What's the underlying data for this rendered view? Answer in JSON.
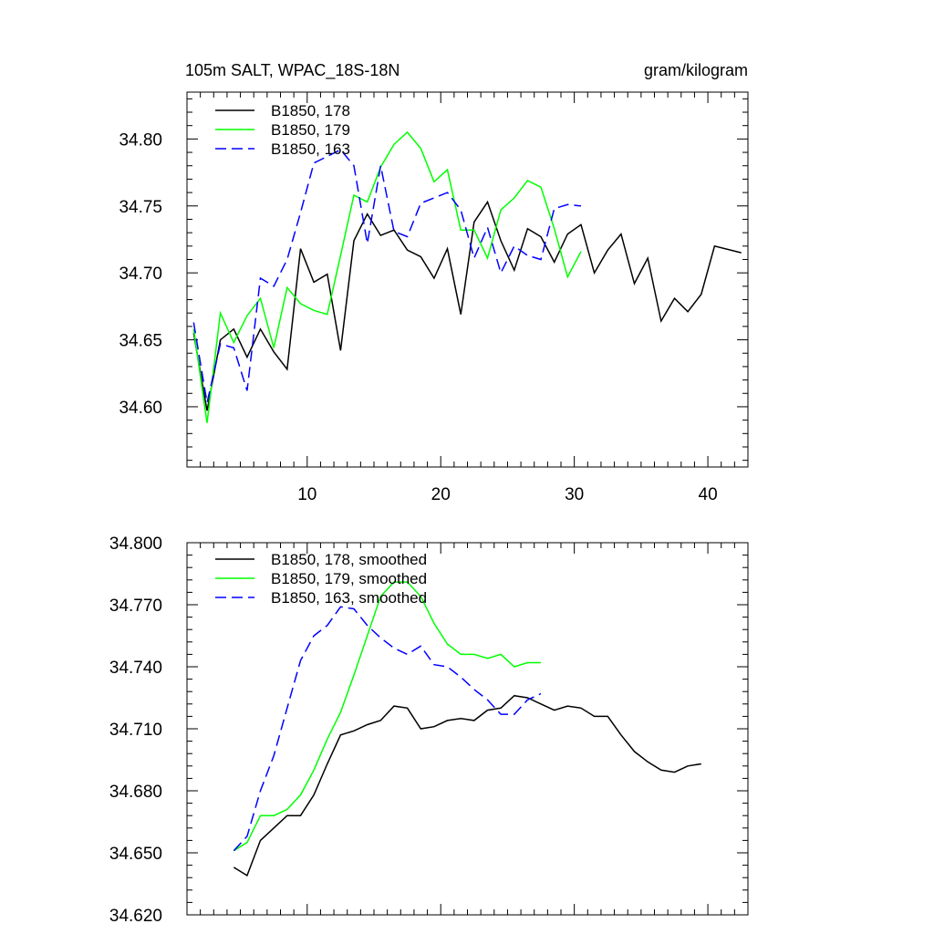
{
  "titles": {
    "left": "105m SALT, WPAC_18S-18N",
    "right": "gram/kilogram"
  },
  "chart_data": [
    {
      "type": "line",
      "title": "105m SALT, WPAC_18S-18N",
      "units": "gram/kilogram",
      "xlim": [
        1,
        43
      ],
      "ylim": [
        34.555,
        34.835
      ],
      "xticks": [
        10,
        20,
        30,
        40
      ],
      "xticklabels": [
        "10",
        "20",
        "30",
        "40"
      ],
      "yticks": [
        34.6,
        34.65,
        34.7,
        34.75,
        34.8
      ],
      "yticklabels": [
        "34.60",
        "34.65",
        "34.70",
        "34.75",
        "34.80"
      ],
      "legend_position": "top-left",
      "series": [
        {
          "name": "B1850, 178",
          "color": "#000000",
          "dash": "solid",
          "x": [
            1.5,
            2.5,
            3.5,
            4.5,
            5.5,
            6.5,
            7.5,
            8.5,
            9.5,
            10.5,
            11.5,
            12.5,
            13.5,
            14.5,
            15.5,
            16.5,
            17.5,
            18.5,
            19.5,
            20.5,
            21.5,
            22.5,
            23.5,
            24.5,
            25.5,
            26.5,
            27.5,
            28.5,
            29.5,
            30.5,
            31.5,
            32.5,
            33.5,
            34.5,
            35.5,
            36.5,
            37.5,
            38.5,
            39.5,
            40.5,
            42.5
          ],
          "values": [
            34.655,
            34.597,
            34.65,
            34.658,
            34.637,
            34.658,
            34.641,
            34.628,
            34.718,
            34.693,
            34.699,
            34.642,
            34.724,
            34.744,
            34.728,
            34.732,
            34.717,
            34.712,
            34.696,
            34.718,
            34.669,
            34.738,
            34.753,
            34.724,
            34.702,
            34.733,
            34.727,
            34.708,
            34.729,
            34.736,
            34.7,
            34.717,
            34.729,
            34.692,
            34.711,
            34.664,
            34.681,
            34.671,
            34.684,
            34.72,
            34.715
          ]
        },
        {
          "name": "B1850, 179",
          "color": "#00ff00",
          "dash": "solid",
          "x": [
            1.5,
            2.5,
            3.5,
            4.5,
            5.5,
            6.5,
            7.5,
            8.5,
            9.5,
            10.5,
            11.5,
            12.5,
            13.5,
            14.5,
            15.5,
            16.5,
            17.5,
            18.5,
            19.5,
            20.5,
            21.5,
            22.5,
            23.5,
            24.5,
            25.5,
            26.5,
            27.5,
            28.5,
            29.5,
            30.5
          ],
          "values": [
            34.658,
            34.588,
            34.67,
            34.648,
            34.668,
            34.681,
            34.644,
            34.689,
            34.677,
            34.672,
            34.669,
            34.713,
            34.758,
            34.753,
            34.779,
            34.796,
            34.805,
            34.793,
            34.768,
            34.777,
            34.732,
            34.732,
            34.711,
            34.747,
            34.756,
            34.769,
            34.764,
            34.733,
            34.697,
            34.716
          ]
        },
        {
          "name": "B1850, 163",
          "color": "#0000ff",
          "dash": "dashed",
          "x": [
            1.5,
            2.5,
            3.5,
            4.5,
            5.5,
            6.5,
            7.5,
            8.5,
            9.5,
            10.5,
            11.5,
            12.5,
            13.5,
            14.5,
            15.5,
            16.5,
            17.5,
            18.5,
            19.5,
            20.5,
            21.5,
            22.5,
            23.5,
            24.5,
            25.5,
            26.5,
            27.5,
            28.5,
            29.5,
            30.5
          ],
          "values": [
            34.663,
            34.603,
            34.647,
            34.644,
            34.612,
            34.696,
            34.69,
            34.71,
            34.745,
            34.782,
            34.787,
            34.792,
            34.78,
            34.722,
            34.78,
            34.731,
            34.727,
            34.752,
            34.756,
            34.76,
            34.747,
            34.711,
            34.734,
            34.7,
            34.72,
            34.713,
            34.71,
            34.748,
            34.751,
            34.75
          ]
        }
      ]
    },
    {
      "type": "line",
      "xlim": [
        1,
        43
      ],
      "ylim": [
        34.62,
        34.8
      ],
      "xticks": [
        10,
        20,
        30,
        40
      ],
      "yticks": [
        34.62,
        34.65,
        34.68,
        34.71,
        34.74,
        34.77,
        34.8
      ],
      "yticklabels": [
        "34.620",
        "34.650",
        "34.680",
        "34.710",
        "34.740",
        "34.770",
        "34.800"
      ],
      "legend_position": "top-left",
      "series": [
        {
          "name": "B1850, 178, smoothed",
          "color": "#000000",
          "dash": "solid",
          "x": [
            4.5,
            5.5,
            6.5,
            7.5,
            8.5,
            9.5,
            10.5,
            11.5,
            12.5,
            13.5,
            14.5,
            15.5,
            16.5,
            17.5,
            18.5,
            19.5,
            20.5,
            21.5,
            22.5,
            23.5,
            24.5,
            25.5,
            26.5,
            27.5,
            28.5,
            29.5,
            30.5,
            31.5,
            32.5,
            33.5,
            34.5,
            35.5,
            36.5,
            37.5,
            38.5,
            39.5
          ],
          "values": [
            34.643,
            34.639,
            34.656,
            34.662,
            34.668,
            34.668,
            34.678,
            34.693,
            34.707,
            34.709,
            34.712,
            34.714,
            34.721,
            34.72,
            34.71,
            34.711,
            34.714,
            34.715,
            34.714,
            34.719,
            34.72,
            34.726,
            34.725,
            34.722,
            34.719,
            34.721,
            34.72,
            34.716,
            34.716,
            34.707,
            34.699,
            34.694,
            34.69,
            34.689,
            34.692,
            34.693
          ]
        },
        {
          "name": "B1850, 179, smoothed",
          "color": "#00ff00",
          "dash": "solid",
          "x": [
            4.5,
            5.5,
            6.5,
            7.5,
            8.5,
            9.5,
            10.5,
            11.5,
            12.5,
            13.5,
            14.5,
            15.5,
            16.5,
            17.5,
            18.5,
            19.5,
            20.5,
            21.5,
            22.5,
            23.5,
            24.5,
            25.5,
            26.5,
            27.5
          ],
          "values": [
            34.651,
            34.655,
            34.668,
            34.668,
            34.671,
            34.678,
            34.69,
            34.705,
            34.718,
            34.736,
            34.755,
            34.774,
            34.781,
            34.781,
            34.774,
            34.761,
            34.751,
            34.746,
            34.746,
            34.744,
            34.746,
            34.74,
            34.742,
            34.742
          ]
        },
        {
          "name": "B1850, 163, smoothed",
          "color": "#0000ff",
          "dash": "dashed",
          "x": [
            4.5,
            5.5,
            6.5,
            7.5,
            8.5,
            9.5,
            10.5,
            11.5,
            12.5,
            13.5,
            14.5,
            15.5,
            16.5,
            17.5,
            18.5,
            19.5,
            20.5,
            21.5,
            22.5,
            23.5,
            24.5,
            25.5,
            26.5,
            27.5
          ],
          "values": [
            34.651,
            34.658,
            34.68,
            34.697,
            34.72,
            34.743,
            34.755,
            34.76,
            34.769,
            34.768,
            34.76,
            34.754,
            34.749,
            34.746,
            34.75,
            34.741,
            34.74,
            34.735,
            34.729,
            34.724,
            34.717,
            34.717,
            34.724,
            34.727
          ]
        }
      ]
    }
  ]
}
